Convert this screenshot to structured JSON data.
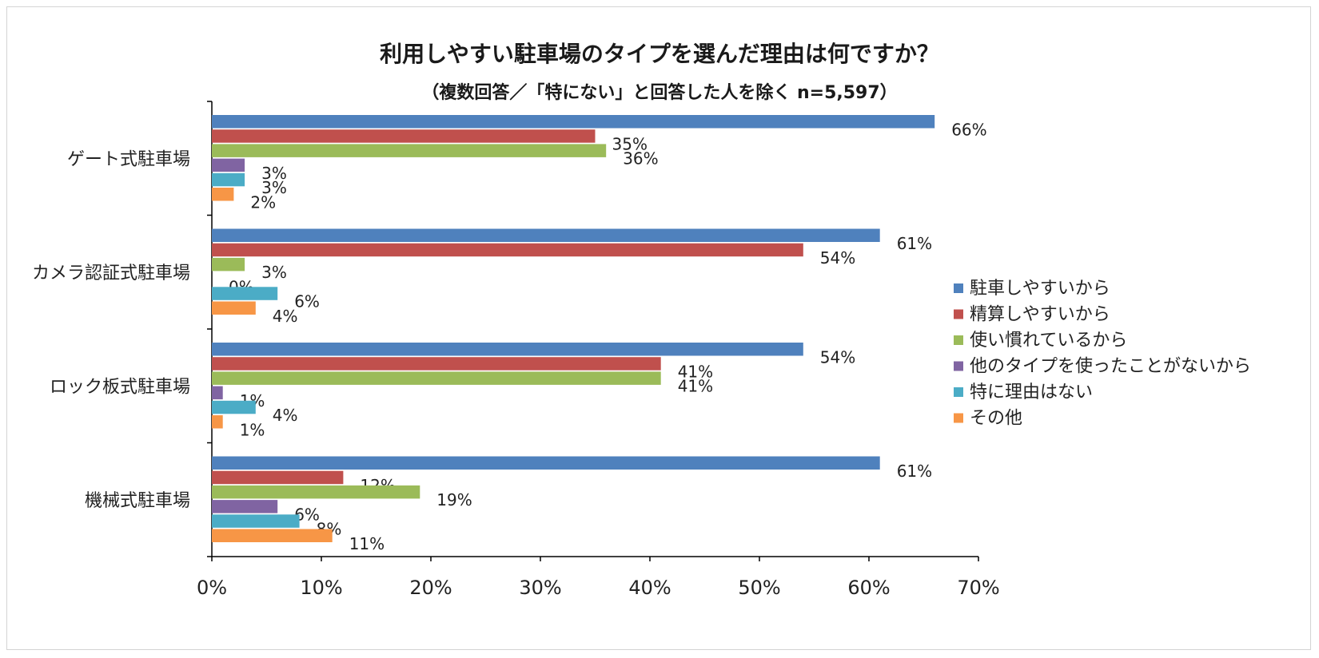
{
  "chart_data": {
    "type": "bar",
    "orientation": "horizontal",
    "title": "利用しやすい駐車場のタイプを選んだ理由は何ですか？",
    "subtitle": "（複数回答／「特にない」と回答した人を除く n=5,597）",
    "categories": [
      "ゲート式駐車場",
      "カメラ認証式駐車場",
      "ロック板式駐車場",
      "機械式駐車場"
    ],
    "series": [
      {
        "name": "駐車しやすいから",
        "color": "#4f81bd",
        "values": [
          66,
          61,
          54,
          61
        ]
      },
      {
        "name": "精算しやすいから",
        "color": "#c0504d",
        "values": [
          35,
          54,
          41,
          12
        ]
      },
      {
        "name": "使い慣れているから",
        "color": "#9bbb59",
        "values": [
          36,
          3,
          41,
          19
        ]
      },
      {
        "name": "他のタイプを使ったことがないから",
        "color": "#8064a2",
        "values": [
          3,
          0,
          1,
          6
        ]
      },
      {
        "name": "特に理由はない",
        "color": "#4bacc6",
        "values": [
          3,
          6,
          4,
          8
        ]
      },
      {
        "name": "その他",
        "color": "#f79646",
        "values": [
          2,
          4,
          1,
          11
        ]
      }
    ],
    "xlim": [
      0,
      70
    ],
    "xticks": [
      0,
      10,
      20,
      30,
      40,
      50,
      60,
      70
    ],
    "value_suffix": "%",
    "legend_position": "right",
    "grid": false
  }
}
